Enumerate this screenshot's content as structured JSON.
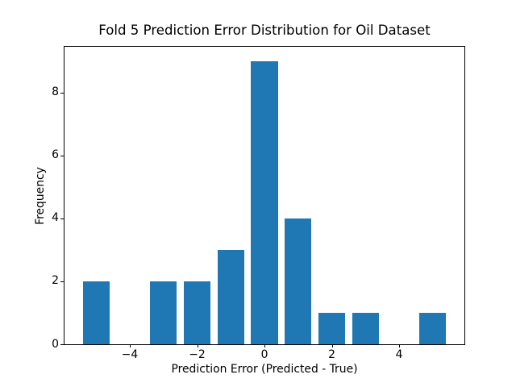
{
  "chart_data": {
    "type": "bar",
    "title": "Fold 5 Prediction Error Distribution for Oil Dataset",
    "xlabel": "Prediction Error (Predicted - True)",
    "ylabel": "Frequency",
    "x": [
      -5,
      -4,
      -3,
      -2,
      -1,
      0,
      1,
      2,
      3,
      4,
      5
    ],
    "values": [
      2,
      0,
      2,
      2,
      3,
      9,
      4,
      1,
      1,
      0,
      1
    ],
    "bar_width": 0.8,
    "bar_color": "#1f77b4",
    "xlim": [
      -5.94,
      5.94
    ],
    "ylim": [
      0,
      9.45
    ],
    "xticks": [
      -4,
      -2,
      0,
      2,
      4
    ],
    "xtick_labels": [
      "−4",
      "−2",
      "0",
      "2",
      "4"
    ],
    "yticks": [
      0,
      2,
      4,
      6,
      8
    ],
    "ytick_labels": [
      "0",
      "2",
      "4",
      "6",
      "8"
    ],
    "grid": false,
    "legend": null
  }
}
